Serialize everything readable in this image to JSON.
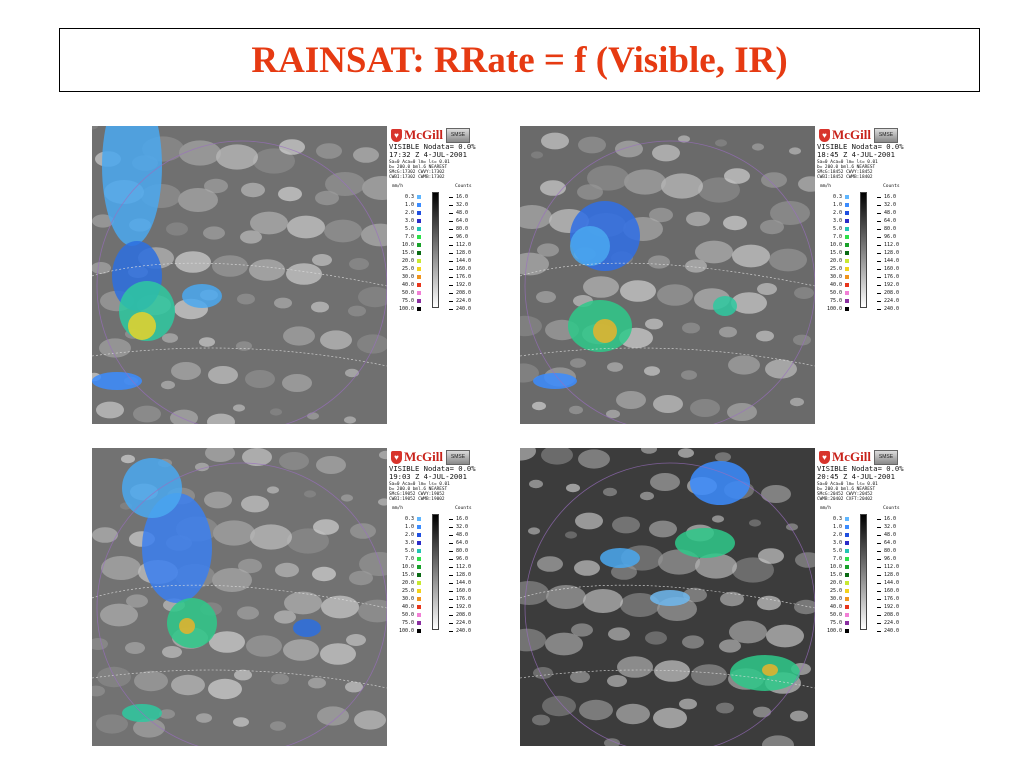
{
  "title": "RAINSAT: RRate = f (Visible, IR)",
  "logo": {
    "name": "McGill",
    "badge": "SMSE"
  },
  "legend_units": "mm/h",
  "legend_counts_label": "Counts",
  "rain_rates": [
    "0.3",
    "1.0",
    "2.0",
    "3.0",
    "5.0",
    "7.0",
    "10.0",
    "15.0",
    "20.0",
    "25.0",
    "30.0",
    "40.0",
    "50.0",
    "75.0",
    "100.0"
  ],
  "rain_colors": [
    "#5fb6ff",
    "#3b8cff",
    "#1f4fe0",
    "#2c2cc8",
    "#23c4b4",
    "#2ee04a",
    "#19a12a",
    "#0a6a14",
    "#c8e832",
    "#f2d21b",
    "#f0941d",
    "#e8361c",
    "#f27fd6",
    "#8a2fa0",
    "#000000"
  ],
  "counts": [
    "16.0",
    "32.0",
    "48.0",
    "64.0",
    "80.0",
    "96.0",
    "112.0",
    "128.0",
    "144.0",
    "160.0",
    "176.0",
    "192.0",
    "208.0",
    "224.0",
    "240.0"
  ],
  "panels": [
    {
      "header": "VISIBLE  Nodata=  0.0%",
      "time": "17:32 Z  4-JUL-2001",
      "meta": "Sa=0 Aca=0 lm= ls= 0.01\nb= 200.0 bml.6 NEAREST\nSMcG:17302 CWVY:17302\nCWBI:17302 CWMB:17302"
    },
    {
      "header": "VISIBLE  Nodata=  0.0%",
      "time": "18:45 Z  4-JUL-2001",
      "meta": "Sa=0 Aca=0 lm= ls= 0.01\nb= 200.0 bml.6 NEAREST\nSMcG:18452 CWVY:18452\nCWBI:18452 CWMB:18402"
    },
    {
      "header": "VISIBLE  Nodata=  0.0%",
      "time": "19:03 Z  4-JUL-2001",
      "meta": "Sa=0 Aca=0 lm= ls= 0.01\nb= 200.0 bml.6 NEAREST\nSMcG:19052 CWVY:19052\nCWBI:19052 CWMB:19002"
    },
    {
      "header": "VISIBLE  Nodata=  0.0%",
      "time": "20:45 Z  4-JUL-2001",
      "meta": "Sa=0 Aca=0 lm= ls= 0.01\nb= 200.0 bml.6 NEAREST\nSMcG:20452 CWVY:20452\nCWMB:20402 CXFT:20402"
    }
  ]
}
